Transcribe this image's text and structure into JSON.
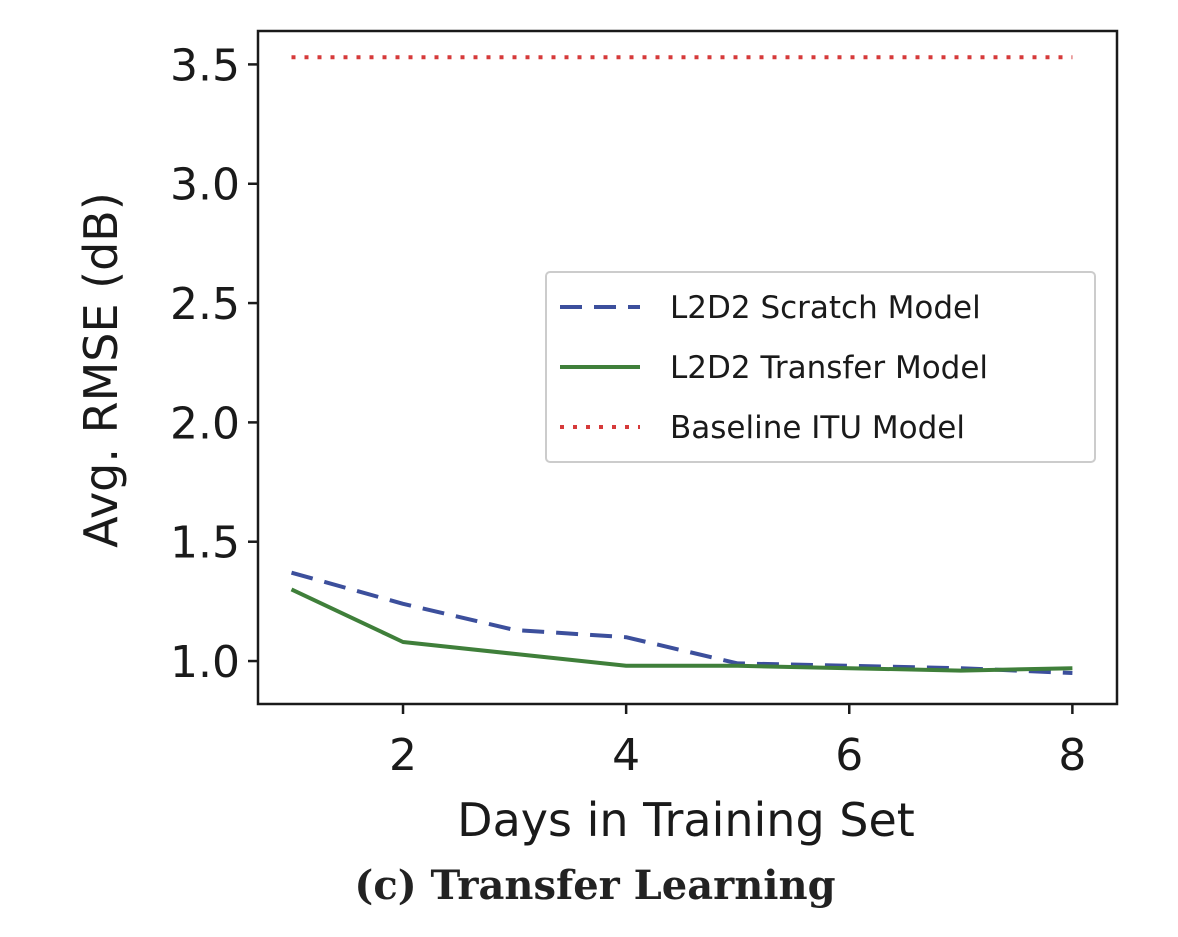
{
  "caption": "(c) Transfer Learning",
  "chart_data": {
    "type": "line",
    "xlabel": "Days in Training Set",
    "ylabel": "Avg. RMSE (dB)",
    "xlim": [
      0.7,
      8.4
    ],
    "ylim": [
      0.82,
      3.64
    ],
    "xticks": [
      2,
      4,
      6,
      8
    ],
    "yticks": [
      1.0,
      1.5,
      2.0,
      2.5,
      3.0,
      3.5
    ],
    "ytick_labels": [
      "1.0",
      "1.5",
      "2.0",
      "2.5",
      "3.0",
      "3.5"
    ],
    "grid": false,
    "legend_position": "center-right",
    "series": [
      {
        "name": "L2D2 Scratch Model",
        "style": "dashed",
        "color": "#3c4f9c",
        "x": [
          1,
          2,
          3,
          4,
          5,
          6,
          7,
          8
        ],
        "y": [
          1.37,
          1.24,
          1.13,
          1.1,
          0.99,
          0.98,
          0.97,
          0.95
        ]
      },
      {
        "name": "L2D2 Transfer Model",
        "style": "solid",
        "color": "#3f7f3a",
        "x": [
          1,
          2,
          3,
          4,
          5,
          6,
          7,
          8
        ],
        "y": [
          1.3,
          1.08,
          1.03,
          0.98,
          0.98,
          0.97,
          0.96,
          0.97
        ]
      },
      {
        "name": "Baseline ITU Model",
        "style": "dotted",
        "color": "#d63a3a",
        "x": [
          1,
          8
        ],
        "y": [
          3.53,
          3.53
        ]
      }
    ]
  }
}
